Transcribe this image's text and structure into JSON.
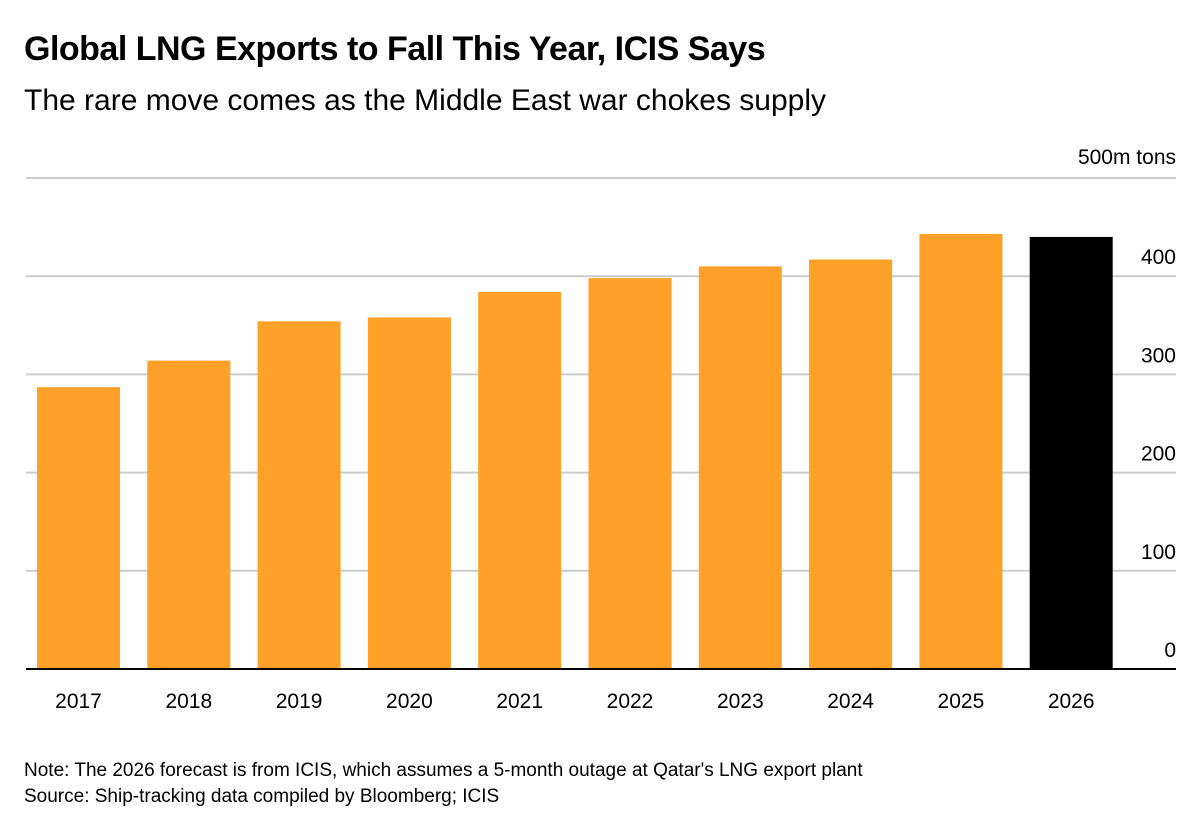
{
  "chart_data": {
    "type": "bar",
    "title": "Global LNG Exports to Fall This Year, ICIS Says",
    "subtitle": "The rare move comes as the Middle East war chokes supply",
    "unit_label": "500m tons",
    "categories": [
      "2017",
      "2018",
      "2019",
      "2020",
      "2021",
      "2022",
      "2023",
      "2024",
      "2025",
      "2026"
    ],
    "values": [
      287,
      314,
      354,
      358,
      384,
      398,
      410,
      417,
      443,
      440
    ],
    "ylim": [
      0,
      500
    ],
    "yticks": [
      0,
      100,
      200,
      300,
      400,
      500
    ],
    "ytick_labels": [
      "0",
      "100",
      "200",
      "300",
      "400",
      "500m tons"
    ],
    "y_axis_side": "right",
    "grid": true,
    "colors": {
      "actual": "#FFA028",
      "forecast": "#000000",
      "grid": "#cccccc"
    },
    "highlighted_category": "2026",
    "note": "Note: The 2026 forecast is from ICIS, which assumes a 5-month outage at Qatar's LNG export plant",
    "source": "Source: Ship-tracking data compiled by Bloomberg; ICIS"
  }
}
